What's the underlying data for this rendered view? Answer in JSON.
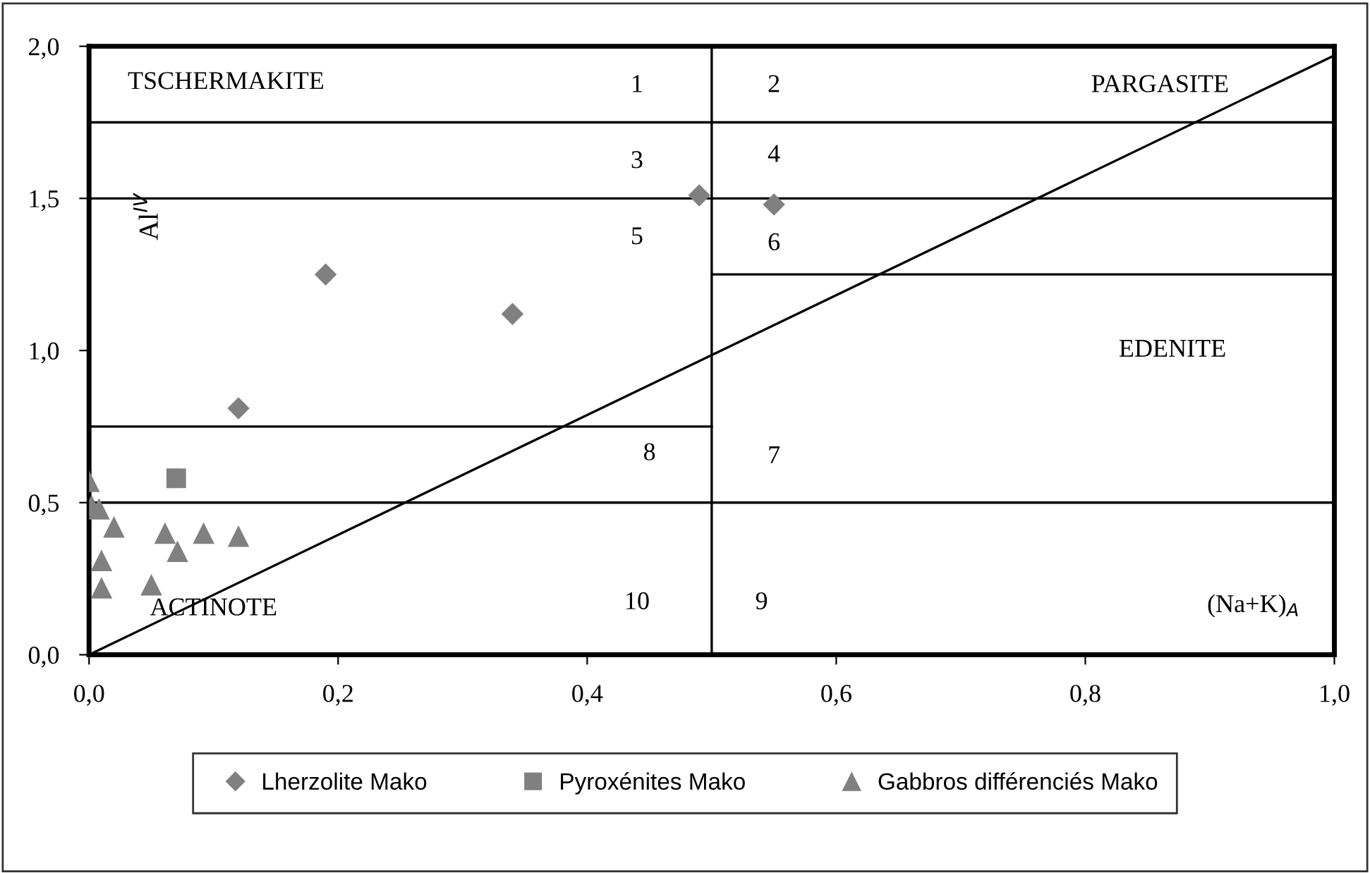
{
  "chart_data": {
    "type": "scatter",
    "xlabel": "(Na+K)$_{A}$",
    "ylabel": "Al$^{IV}$",
    "xlim": [
      0,
      1.0
    ],
    "ylim": [
      0,
      2.0
    ],
    "xticks": [
      {
        "value": 0,
        "label": "0,0"
      },
      {
        "value": 0.2,
        "label": "0,2"
      },
      {
        "value": 0.4,
        "label": "0,4"
      },
      {
        "value": 0.6,
        "label": "0,6"
      },
      {
        "value": 0.8,
        "label": "0,8"
      },
      {
        "value": 1.0,
        "label": "1,0"
      }
    ],
    "yticks": [
      {
        "value": 0,
        "label": "0,0"
      },
      {
        "value": 0.5,
        "label": "0,5"
      },
      {
        "value": 1.0,
        "label": "1,0"
      },
      {
        "value": 1.5,
        "label": "1,5"
      },
      {
        "value": 2.0,
        "label": "2,0"
      }
    ],
    "grid": false,
    "legend": "bottom",
    "series": [
      {
        "name": "Lherzolite Mako",
        "color": "#808080",
        "marker": "diamond",
        "x": [
          0.12,
          0.19,
          0.34,
          0.49,
          0.55
        ],
        "values": [
          0.81,
          1.25,
          1.12,
          1.51,
          1.48
        ]
      },
      {
        "name": "Pyroxénites Mako",
        "color": "#808080",
        "marker": "square",
        "x": [
          0.07
        ],
        "values": [
          0.58
        ]
      },
      {
        "name": "Gabbros différenciés Mako",
        "color": "#808080",
        "marker": "triangle",
        "x": [
          0.0,
          0.002,
          0.008,
          0.02,
          0.061,
          0.071,
          0.092,
          0.12,
          0.01,
          0.01,
          0.05
        ],
        "values": [
          0.57,
          0.49,
          0.48,
          0.42,
          0.4,
          0.34,
          0.4,
          0.39,
          0.31,
          0.22,
          0.23
        ]
      },
      {
        "type": "line",
        "color": "#000000",
        "marker": "none",
        "x": [
          0,
          1.0
        ],
        "values": [
          0,
          1.97
        ]
      },
      {
        "type": "line",
        "color": "#000000",
        "marker": "none",
        "x": [
          0.5,
          1.0
        ],
        "values": [
          1.25,
          1.25
        ]
      },
      {
        "type": "line",
        "color": "#000000",
        "marker": "none",
        "x": [
          0,
          0.5
        ],
        "values": [
          0.75,
          0.75
        ]
      }
    ],
    "ref_lines": [
      {
        "axis": "y",
        "value": 1.75,
        "color": "#000000"
      },
      {
        "axis": "y",
        "value": 1.5,
        "color": "#000000"
      },
      {
        "axis": "y",
        "value": 0.5,
        "color": "#000000"
      },
      {
        "axis": "x",
        "value": 0.5,
        "color": "#000000"
      }
    ],
    "annotations": [
      "TSCHERMAKITE",
      "1",
      "2",
      "PARGASITE",
      "3",
      "4",
      "5",
      "6",
      "EDENITE",
      "8",
      "7",
      "ACTINOTE",
      "10",
      "9"
    ]
  }
}
